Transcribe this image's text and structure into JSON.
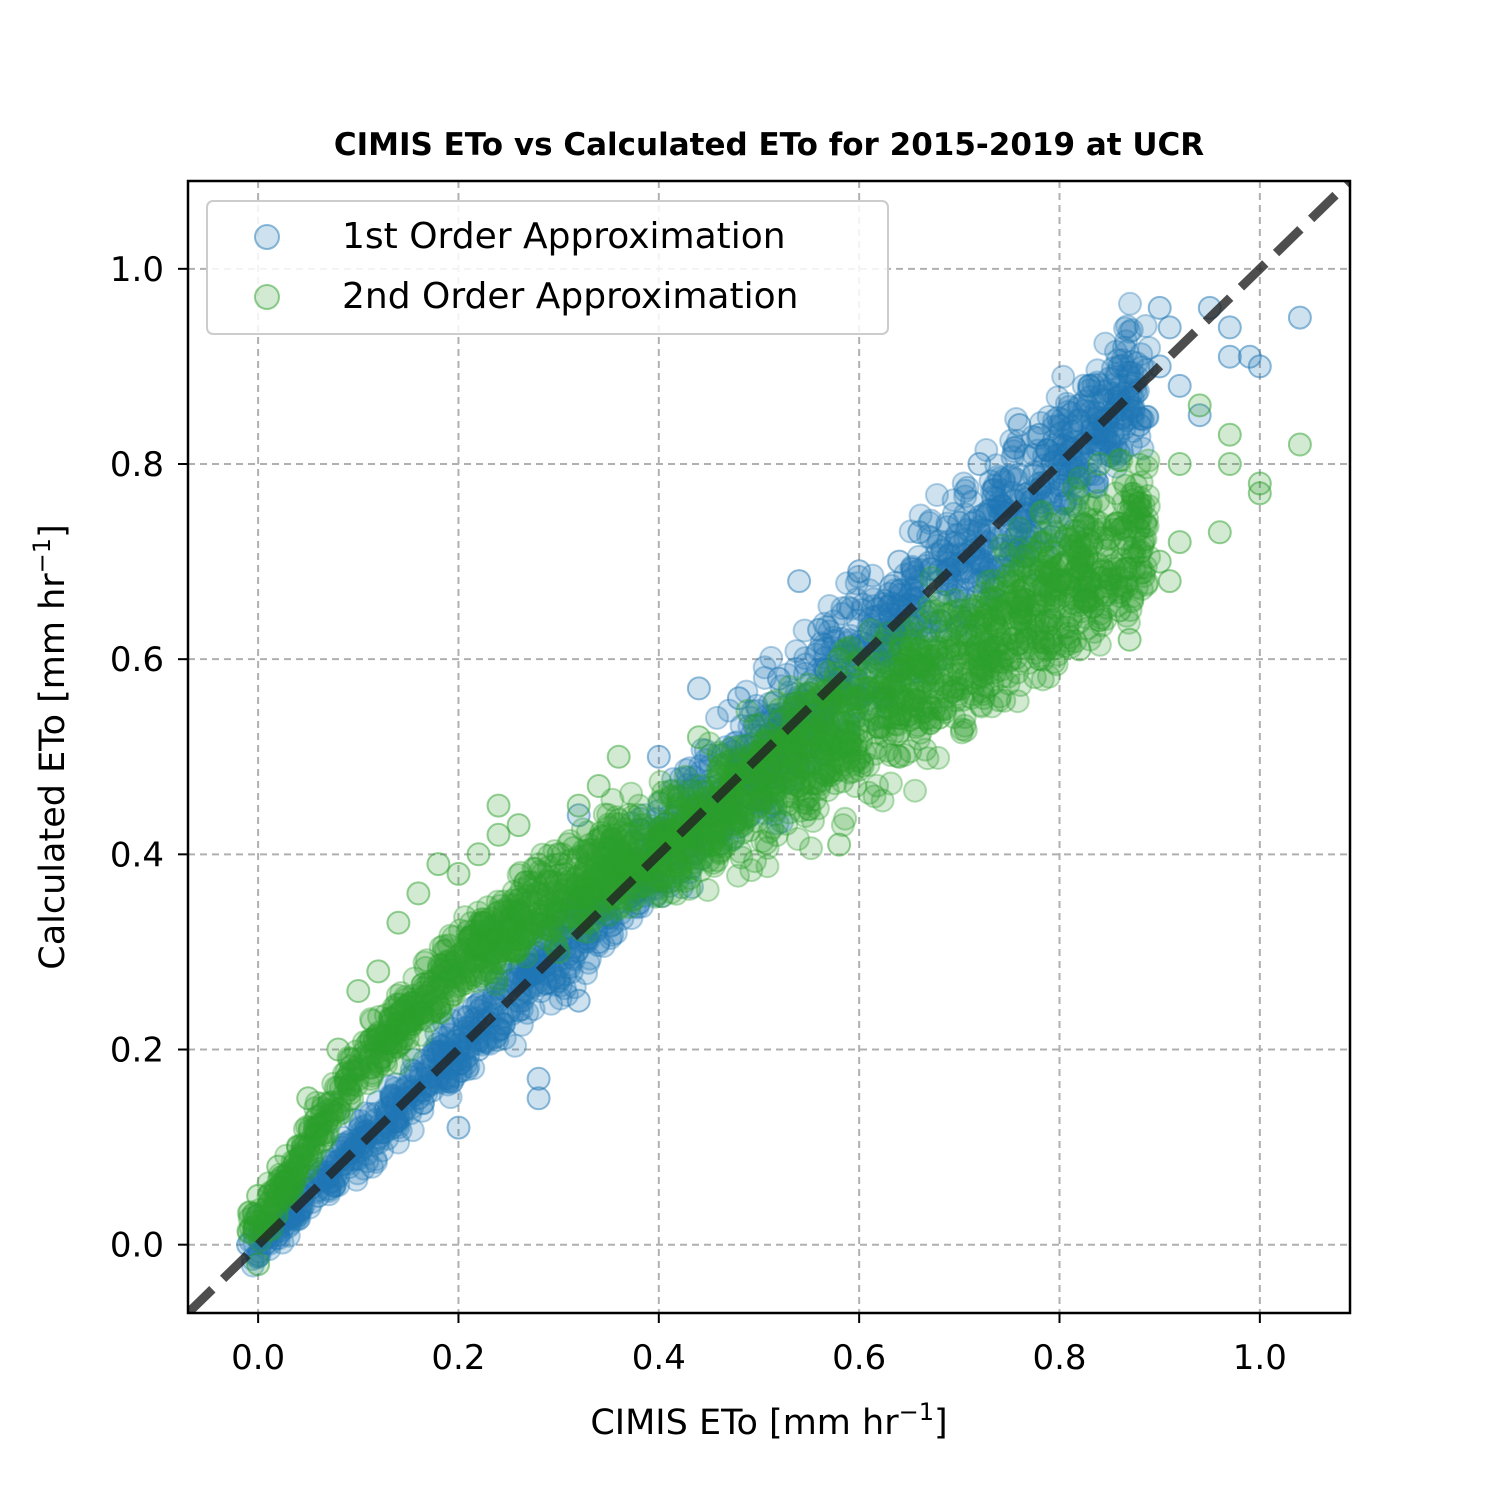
{
  "chart_data": {
    "type": "scatter",
    "title": "CIMIS ETo vs Calculated ETo for 2015-2019 at UCR",
    "xlabel": {
      "text": "CIMIS ETo [mm hr",
      "sup": "−1",
      "suffix": "]"
    },
    "ylabel": {
      "text": "Calculated ETo [mm hr",
      "sup": "−1",
      "suffix": "]"
    },
    "xlim": [
      -0.07,
      1.09
    ],
    "ylim": [
      -0.07,
      1.09
    ],
    "xticks": [
      "0.0",
      "0.2",
      "0.4",
      "0.6",
      "0.8",
      "1.0"
    ],
    "yticks": [
      "0.0",
      "0.2",
      "0.4",
      "0.6",
      "0.8",
      "1.0"
    ],
    "grid": true,
    "legend_position": "upper-left",
    "reference_line": {
      "style": "dashed",
      "color": "#222222",
      "slope": 1,
      "intercept": 0
    },
    "series": [
      {
        "name": "1st Order Approximation",
        "color": "#1f77b4",
        "trend": {
          "slope": 1.0,
          "intercept": 0.0
        },
        "points": [
          [
            -0.01,
            0.0
          ],
          [
            0.0,
            0.03
          ],
          [
            0.02,
            0.01
          ],
          [
            0.04,
            0.03
          ],
          [
            0.06,
            0.05
          ],
          [
            0.08,
            0.07
          ],
          [
            0.1,
            0.1
          ],
          [
            0.12,
            0.11
          ],
          [
            0.14,
            0.13
          ],
          [
            0.16,
            0.15
          ],
          [
            0.18,
            0.17
          ],
          [
            0.2,
            0.12
          ],
          [
            0.22,
            0.2
          ],
          [
            0.24,
            0.22
          ],
          [
            0.26,
            0.24
          ],
          [
            0.28,
            0.17
          ],
          [
            0.28,
            0.15
          ],
          [
            0.3,
            0.27
          ],
          [
            0.32,
            0.25
          ],
          [
            0.32,
            0.44
          ],
          [
            0.34,
            0.31
          ],
          [
            0.36,
            0.38
          ],
          [
            0.38,
            0.35
          ],
          [
            0.4,
            0.39
          ],
          [
            0.4,
            0.5
          ],
          [
            0.42,
            0.4
          ],
          [
            0.44,
            0.43
          ],
          [
            0.44,
            0.57
          ],
          [
            0.46,
            0.45
          ],
          [
            0.48,
            0.47
          ],
          [
            0.48,
            0.56
          ],
          [
            0.5,
            0.5
          ],
          [
            0.52,
            0.49
          ],
          [
            0.52,
            0.58
          ],
          [
            0.54,
            0.52
          ],
          [
            0.54,
            0.68
          ],
          [
            0.56,
            0.54
          ],
          [
            0.56,
            0.63
          ],
          [
            0.58,
            0.58
          ],
          [
            0.6,
            0.69
          ],
          [
            0.6,
            0.6
          ],
          [
            0.62,
            0.6
          ],
          [
            0.64,
            0.7
          ],
          [
            0.64,
            0.64
          ],
          [
            0.66,
            0.73
          ],
          [
            0.66,
            0.64
          ],
          [
            0.68,
            0.69
          ],
          [
            0.7,
            0.74
          ],
          [
            0.72,
            0.8
          ],
          [
            0.72,
            0.7
          ],
          [
            0.74,
            0.76
          ],
          [
            0.76,
            0.84
          ],
          [
            0.78,
            0.78
          ],
          [
            0.78,
            0.83
          ],
          [
            0.8,
            0.8
          ],
          [
            0.82,
            0.86
          ],
          [
            0.83,
            0.88
          ],
          [
            0.84,
            0.82
          ],
          [
            0.86,
            0.9
          ],
          [
            0.87,
            0.88
          ],
          [
            0.88,
            0.84
          ],
          [
            0.9,
            0.9
          ],
          [
            0.9,
            0.96
          ],
          [
            0.91,
            0.94
          ],
          [
            0.92,
            0.88
          ],
          [
            0.94,
            0.85
          ],
          [
            0.95,
            0.96
          ],
          [
            0.97,
            0.94
          ],
          [
            0.97,
            0.91
          ],
          [
            0.99,
            0.91
          ],
          [
            1.0,
            0.9
          ],
          [
            1.04,
            0.95
          ]
        ]
      },
      {
        "name": "2nd Order Approximation",
        "color": "#2ca02c",
        "trend": {
          "curve": [
            [
              0.0,
              0.02
            ],
            [
              0.1,
              0.18
            ],
            [
              0.2,
              0.29
            ],
            [
              0.3,
              0.36
            ],
            [
              0.4,
              0.41
            ],
            [
              0.5,
              0.47
            ],
            [
              0.6,
              0.54
            ],
            [
              0.7,
              0.6
            ],
            [
              0.8,
              0.67
            ],
            [
              0.9,
              0.74
            ]
          ]
        },
        "points": [
          [
            0.0,
            -0.02
          ],
          [
            0.0,
            0.05
          ],
          [
            0.02,
            0.08
          ],
          [
            0.04,
            0.1
          ],
          [
            0.05,
            0.15
          ],
          [
            0.08,
            0.2
          ],
          [
            0.1,
            0.26
          ],
          [
            0.12,
            0.28
          ],
          [
            0.14,
            0.33
          ],
          [
            0.16,
            0.36
          ],
          [
            0.18,
            0.39
          ],
          [
            0.2,
            0.38
          ],
          [
            0.22,
            0.4
          ],
          [
            0.24,
            0.42
          ],
          [
            0.24,
            0.45
          ],
          [
            0.26,
            0.43
          ],
          [
            0.28,
            0.36
          ],
          [
            0.3,
            0.4
          ],
          [
            0.3,
            0.3
          ],
          [
            0.32,
            0.45
          ],
          [
            0.34,
            0.47
          ],
          [
            0.36,
            0.5
          ],
          [
            0.38,
            0.44
          ],
          [
            0.4,
            0.38
          ],
          [
            0.42,
            0.44
          ],
          [
            0.44,
            0.52
          ],
          [
            0.46,
            0.48
          ],
          [
            0.48,
            0.46
          ],
          [
            0.5,
            0.45
          ],
          [
            0.52,
            0.5
          ],
          [
            0.54,
            0.47
          ],
          [
            0.56,
            0.54
          ],
          [
            0.58,
            0.41
          ],
          [
            0.58,
            0.6
          ],
          [
            0.6,
            0.56
          ],
          [
            0.62,
            0.53
          ],
          [
            0.64,
            0.5
          ],
          [
            0.66,
            0.61
          ],
          [
            0.68,
            0.54
          ],
          [
            0.7,
            0.65
          ],
          [
            0.72,
            0.6
          ],
          [
            0.74,
            0.62
          ],
          [
            0.76,
            0.66
          ],
          [
            0.78,
            0.6
          ],
          [
            0.78,
            0.69
          ],
          [
            0.8,
            0.68
          ],
          [
            0.82,
            0.61
          ],
          [
            0.82,
            0.72
          ],
          [
            0.84,
            0.64
          ],
          [
            0.84,
            0.8
          ],
          [
            0.86,
            0.65
          ],
          [
            0.87,
            0.62
          ],
          [
            0.88,
            0.76
          ],
          [
            0.9,
            0.7
          ],
          [
            0.91,
            0.68
          ],
          [
            0.92,
            0.72
          ],
          [
            0.92,
            0.8
          ],
          [
            0.94,
            0.86
          ],
          [
            0.96,
            0.73
          ],
          [
            0.97,
            0.8
          ],
          [
            0.97,
            0.83
          ],
          [
            1.0,
            0.78
          ],
          [
            1.0,
            0.77
          ],
          [
            1.04,
            0.82
          ]
        ]
      }
    ]
  }
}
